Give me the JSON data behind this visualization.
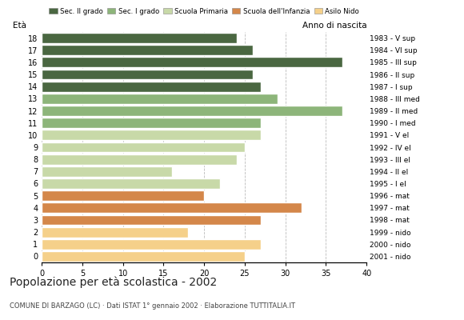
{
  "ages": [
    0,
    1,
    2,
    3,
    4,
    5,
    6,
    7,
    8,
    9,
    10,
    11,
    12,
    13,
    14,
    15,
    16,
    17,
    18
  ],
  "values": [
    25,
    27,
    18,
    27,
    32,
    20,
    22,
    16,
    24,
    25,
    27,
    27,
    37,
    29,
    27,
    26,
    37,
    26,
    24
  ],
  "colors": [
    "#f5d08a",
    "#f5d08a",
    "#f5d08a",
    "#d4874a",
    "#d4874a",
    "#d4874a",
    "#c8d9a8",
    "#c8d9a8",
    "#c8d9a8",
    "#c8d9a8",
    "#c8d9a8",
    "#8db57a",
    "#8db57a",
    "#8db57a",
    "#4a6741",
    "#4a6741",
    "#4a6741",
    "#4a6741",
    "#4a6741"
  ],
  "right_labels": [
    "2001 - nido",
    "2000 - nido",
    "1999 - nido",
    "1998 - mat",
    "1997 - mat",
    "1996 - mat",
    "1995 - I el",
    "1994 - II el",
    "1993 - III el",
    "1992 - IV el",
    "1991 - V el",
    "1990 - I med",
    "1989 - II med",
    "1988 - III med",
    "1987 - I sup",
    "1986 - II sup",
    "1985 - III sup",
    "1984 - VI sup",
    "1983 - V sup"
  ],
  "legend_labels": [
    "Sec. II grado",
    "Sec. I grado",
    "Scuola Primaria",
    "Scuola dell'Infanzia",
    "Asilo Nido"
  ],
  "legend_colors": [
    "#4a6741",
    "#8db57a",
    "#c8d9a8",
    "#d4874a",
    "#f5d08a"
  ],
  "title": "Popolazione per età scolastica - 2002",
  "subtitle": "COMUNE DI BARZAGO (LC) · Dati ISTAT 1° gennaio 2002 · Elaborazione TUTTITALIA.IT",
  "xlabel_eta": "Età",
  "xlabel_anno": "Anno di nascita",
  "xlim": [
    0,
    40
  ],
  "xticks": [
    0,
    5,
    10,
    15,
    20,
    25,
    30,
    35,
    40
  ],
  "background_color": "#ffffff",
  "bar_edge_color": "#ffffff",
  "grid_color": "#bbbbbb"
}
